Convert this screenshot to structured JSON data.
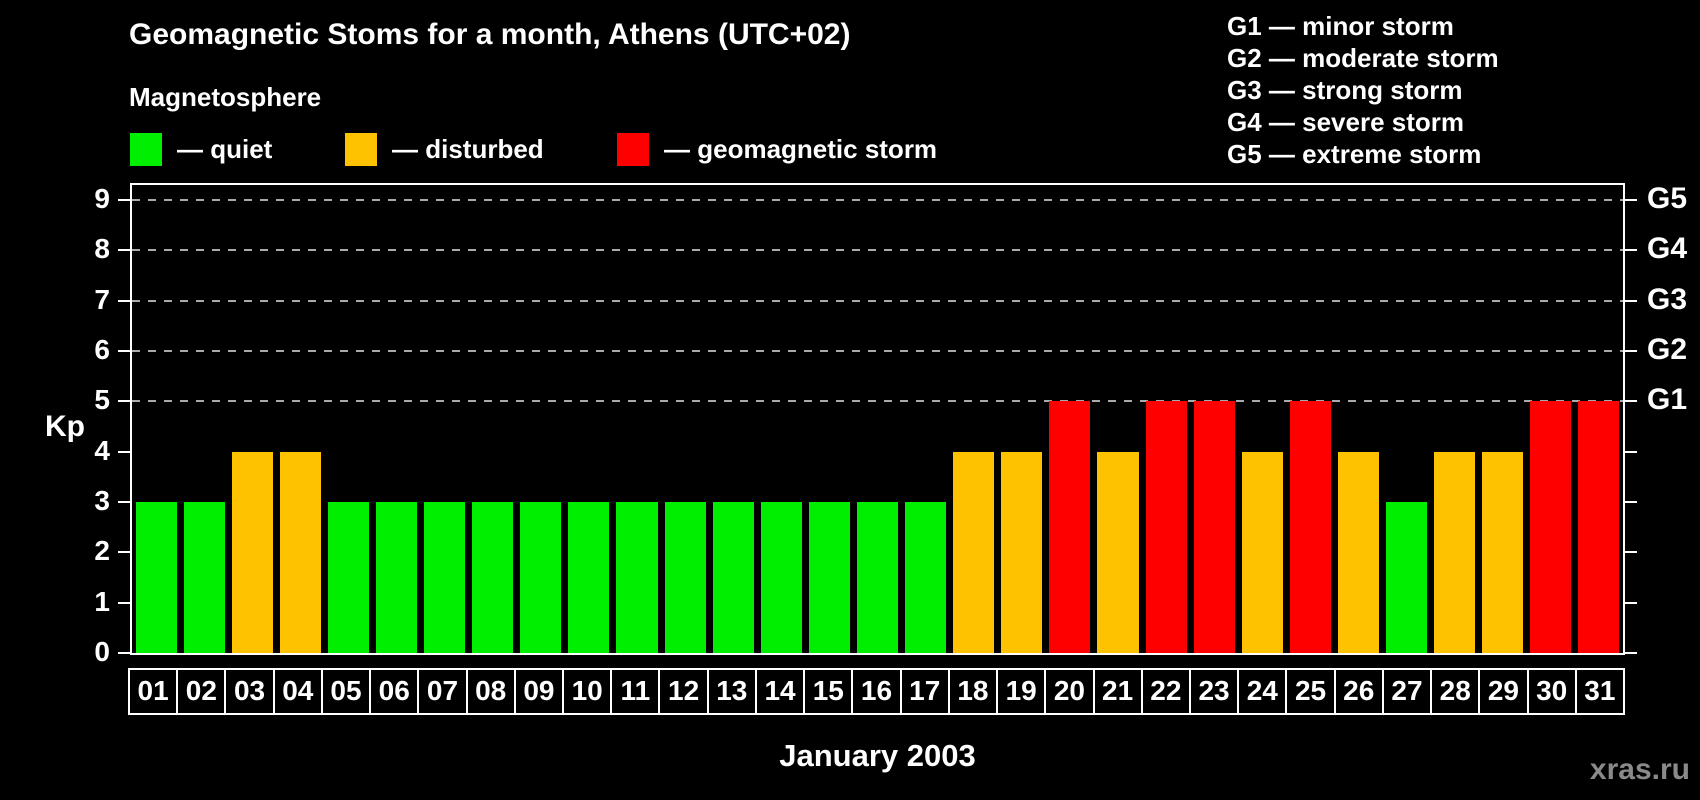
{
  "title": "Geomagnetic Stoms for a month, Athens (UTC+02)",
  "legend": {
    "title": "Magnetosphere",
    "items": [
      {
        "status": "quiet",
        "label": "— quiet",
        "color": "#00ee00"
      },
      {
        "status": "disturbed",
        "label": "— disturbed",
        "color": "#ffc200"
      },
      {
        "status": "storm",
        "label": "— geomagnetic storm",
        "color": "#ff0000"
      }
    ]
  },
  "g_scale_legend": [
    "G1 — minor storm",
    "G2 — moderate storm",
    "G3 — strong storm",
    "G4 — severe storm",
    "G5 — extreme storm"
  ],
  "axes": {
    "y_label": "Kp",
    "x_label": "January 2003"
  },
  "watermark": "xras.ru",
  "colors": {
    "quiet": "#00ee00",
    "disturbed": "#ffc200",
    "storm": "#ff0000",
    "axis": "#ffffff",
    "grid": "#aaaaaa",
    "background": "#000000",
    "watermark": "#8a8a8a"
  },
  "chart_data": {
    "type": "bar",
    "title": "Geomagnetic Stoms for a month, Athens (UTC+02)",
    "xlabel": "January 2003",
    "ylabel": "Kp",
    "ylim": [
      0,
      9.3
    ],
    "y_ticks": [
      0,
      1,
      2,
      3,
      4,
      5,
      6,
      7,
      8,
      9
    ],
    "grid_levels": [
      5,
      6,
      7,
      8,
      9
    ],
    "grid_style": "dashed",
    "right_axis_labels": [
      {
        "label": "G1",
        "value": 5
      },
      {
        "label": "G2",
        "value": 6
      },
      {
        "label": "G3",
        "value": 7
      },
      {
        "label": "G4",
        "value": 8
      },
      {
        "label": "G5",
        "value": 9
      }
    ],
    "categories": [
      "01",
      "02",
      "03",
      "04",
      "05",
      "06",
      "07",
      "08",
      "09",
      "10",
      "11",
      "12",
      "13",
      "14",
      "15",
      "16",
      "17",
      "18",
      "19",
      "20",
      "21",
      "22",
      "23",
      "24",
      "25",
      "26",
      "27",
      "28",
      "29",
      "30",
      "31"
    ],
    "values": [
      3,
      3,
      4,
      4,
      3,
      3,
      3,
      3,
      3,
      3,
      3,
      3,
      3,
      3,
      3,
      3,
      3,
      4,
      4,
      5,
      4,
      5,
      5,
      4,
      5,
      4,
      3,
      4,
      4,
      5,
      5
    ],
    "statuses": [
      "quiet",
      "quiet",
      "disturbed",
      "disturbed",
      "quiet",
      "quiet",
      "quiet",
      "quiet",
      "quiet",
      "quiet",
      "quiet",
      "quiet",
      "quiet",
      "quiet",
      "quiet",
      "quiet",
      "quiet",
      "disturbed",
      "disturbed",
      "storm",
      "disturbed",
      "storm",
      "storm",
      "disturbed",
      "storm",
      "disturbed",
      "quiet",
      "disturbed",
      "disturbed",
      "storm",
      "storm"
    ]
  }
}
